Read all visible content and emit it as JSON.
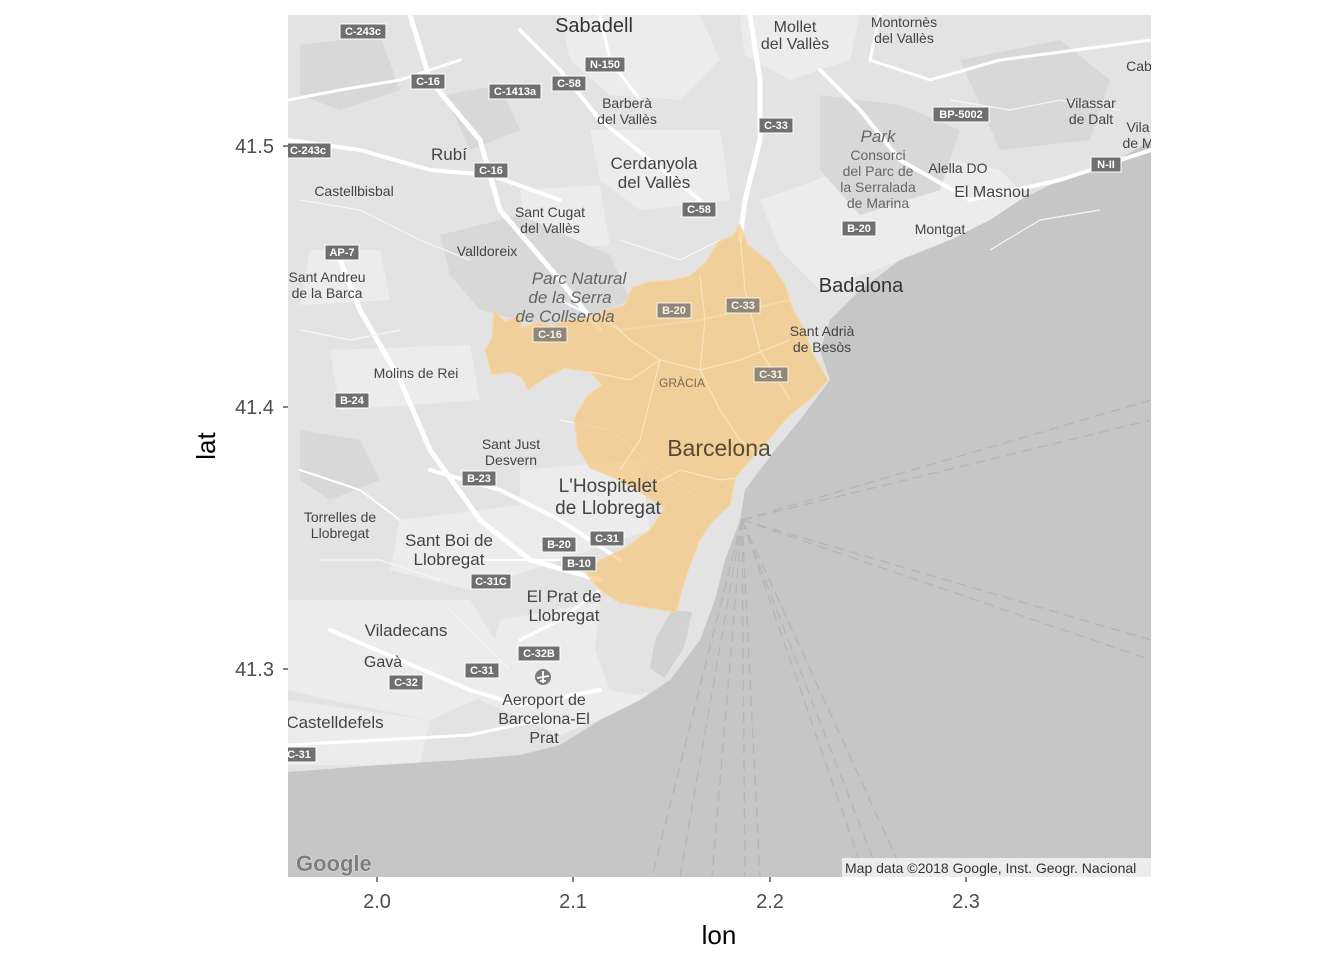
{
  "axes": {
    "x_title": "lon",
    "y_title": "lat",
    "x_ticks": [
      "2.0",
      "2.1",
      "2.2",
      "2.3"
    ],
    "y_ticks": [
      "41.5",
      "41.4",
      "41.3"
    ],
    "x_range": [
      1.955,
      2.395
    ],
    "y_range": [
      41.22,
      41.549
    ]
  },
  "map": {
    "attribution": "Map data ©2018 Google, Inst. Geogr. Nacional",
    "logo": "Google",
    "colors": {
      "land": "#e3e3e3",
      "urban": "#ececec",
      "hills": "#d8d8d8",
      "water": "#c6c6c6",
      "highlight": "#f5c77e",
      "highlight_opacity": 0.72
    },
    "places": {
      "sabadell": "Sabadell",
      "mollet_1": "Mollet",
      "mollet_2": "del Vallès",
      "montornes_1": "Montornès",
      "montornes_2": "del Vallès",
      "cabrils": "Cab",
      "barbera_1": "Barberà",
      "barbera_2": "del Vallès",
      "vilassar_1": "Vilassar",
      "vilassar_2": "de Dalt",
      "vilassar_mar_1": "Vila",
      "vilassar_mar_2": "de M",
      "rubi": "Rubí",
      "cerdanyola_1": "Cerdanyola",
      "cerdanyola_2": "del Vallès",
      "park_label": "Park",
      "consorci_1": "Consorci",
      "consorci_2": "del Parc de",
      "consorci_3": "la Serralada",
      "consorci_4": "de Marina",
      "alella": "Alella DO",
      "el_masnou": "El Masnou",
      "castellbisbal": "Castellbisbal",
      "sant_cugat_1": "Sant Cugat",
      "sant_cugat_2": "del Vallès",
      "montgat": "Montgat",
      "valldoreix": "Valldoreix",
      "sant_andreu_1": "Sant Andreu",
      "sant_andreu_2": "de la Barca",
      "parc_natural_1": "Parc Natural",
      "parc_natural_2": "de la Serra",
      "parc_natural_3": "de Collserola",
      "badalona": "Badalona",
      "sant_adria_1": "Sant Adrià",
      "sant_adria_2": "de Besòs",
      "molins": "Molins de Rei",
      "gracia": "GRÀCIA",
      "sant_just_1": "Sant Just",
      "sant_just_2": "Desvern",
      "barcelona": "Barcelona",
      "hospitalet_1": "L'Hospitalet",
      "hospitalet_2": "de Llobregat",
      "torrelles_1": "Torrelles de",
      "torrelles_2": "Llobregat",
      "sant_boi_1": "Sant Boi de",
      "sant_boi_2": "Llobregat",
      "el_prat_1": "El Prat de",
      "el_prat_2": "Llobregat",
      "viladecans": "Viladecans",
      "gava": "Gavà",
      "aeroport_1": "Aeroport de",
      "aeroport_2": "Barcelona-El",
      "aeroport_3": "Prat",
      "castelldefels": "Castelldefels"
    },
    "shields": {
      "c243c_top": "C-243c",
      "c16_top": "C-16",
      "c1413a": "C-1413a",
      "c58_top": "C-58",
      "n150": "N-150",
      "c33_top": "C-33",
      "bp5002": "BP-5002",
      "nii": "N-II",
      "c243c_left": "C-243c",
      "c16_mid": "C-16",
      "c58_mid": "C-58",
      "b20_top": "B-20",
      "ap7": "AP-7",
      "b20_city": "B-20",
      "c33_city": "C-33",
      "c16_city": "C-16",
      "c31_city": "C-31",
      "b24": "B-24",
      "b23": "B-23",
      "b20_south": "B-20",
      "c31_south": "C-31",
      "b10": "B-10",
      "c31c": "C-31C",
      "c32b": "C-32B",
      "c31_prat": "C-31",
      "c32": "C-32",
      "c31_edge": "C-31"
    }
  }
}
